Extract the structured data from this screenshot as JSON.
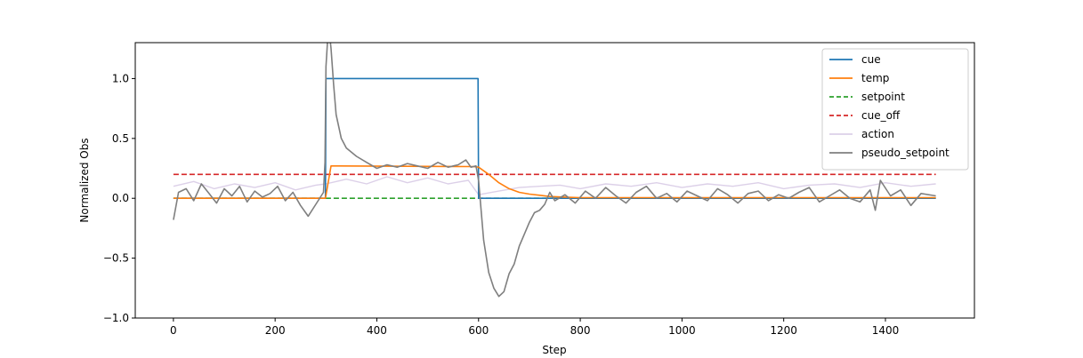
{
  "chart_data": {
    "type": "line",
    "xlabel": "Step",
    "ylabel": "Normalized Obs",
    "xlim": [
      -75,
      1575
    ],
    "ylim": [
      -1.0,
      1.3
    ],
    "xticks": [
      0,
      200,
      400,
      600,
      800,
      1000,
      1200,
      1400
    ],
    "yticks": [
      -1.0,
      -0.5,
      0.0,
      0.5,
      1.0
    ],
    "xtick_labels": [
      "0",
      "200",
      "400",
      "600",
      "800",
      "1000",
      "1200",
      "1400"
    ],
    "ytick_labels": [
      "−1.0",
      "−0.5",
      "0.0",
      "0.5",
      "1.0"
    ],
    "grid": false,
    "legend_position": "top-right",
    "series": [
      {
        "name": "cue",
        "color": "#1f77b4",
        "style": "solid",
        "x": [
          0,
          299,
          300,
          599,
          600,
          1499
        ],
        "y": [
          0,
          0,
          1,
          1,
          0,
          0
        ]
      },
      {
        "name": "temp",
        "color": "#ff7f0e",
        "style": "solid",
        "x": [
          0,
          299,
          310,
          320,
          590,
          600,
          620,
          640,
          660,
          680,
          700,
          720,
          740,
          770,
          800,
          1499
        ],
        "y": [
          0,
          0,
          0.27,
          0.27,
          0.265,
          0.26,
          0.2,
          0.13,
          0.08,
          0.05,
          0.035,
          0.025,
          0.015,
          0.01,
          0.005,
          0.005
        ]
      },
      {
        "name": "setpoint",
        "color": "#2ca02c",
        "style": "dashed",
        "x": [
          0,
          1499
        ],
        "y": [
          0,
          0
        ]
      },
      {
        "name": "cue_off",
        "color": "#d62728",
        "style": "dashed",
        "x": [
          0,
          1499
        ],
        "y": [
          0.2,
          0.2
        ]
      },
      {
        "name": "action",
        "color": "#dcd0e8",
        "style": "solid",
        "x": [
          0,
          40,
          80,
          120,
          160,
          200,
          240,
          280,
          300,
          340,
          380,
          420,
          460,
          500,
          540,
          580,
          600,
          640,
          680,
          720,
          760,
          800,
          850,
          900,
          950,
          1000,
          1050,
          1100,
          1150,
          1200,
          1250,
          1300,
          1350,
          1400,
          1450,
          1499
        ],
        "y": [
          0.1,
          0.14,
          0.08,
          0.12,
          0.09,
          0.13,
          0.07,
          0.11,
          0.12,
          0.16,
          0.12,
          0.18,
          0.13,
          0.17,
          0.12,
          0.15,
          0.03,
          0.06,
          0.09,
          0.1,
          0.11,
          0.08,
          0.12,
          0.1,
          0.13,
          0.09,
          0.12,
          0.1,
          0.13,
          0.08,
          0.11,
          0.12,
          0.09,
          0.13,
          0.1,
          0.12
        ]
      },
      {
        "name": "pseudo_setpoint",
        "color": "#7f7f7f",
        "style": "solid",
        "x": [
          0,
          10,
          25,
          40,
          55,
          70,
          85,
          100,
          115,
          130,
          145,
          160,
          175,
          190,
          205,
          220,
          235,
          250,
          265,
          280,
          295,
          298,
          300,
          305,
          310,
          315,
          320,
          330,
          340,
          360,
          380,
          400,
          420,
          440,
          460,
          480,
          500,
          520,
          540,
          560,
          575,
          585,
          595,
          600,
          610,
          620,
          630,
          640,
          650,
          660,
          670,
          680,
          690,
          700,
          710,
          720,
          730,
          740,
          750,
          770,
          790,
          810,
          830,
          850,
          870,
          890,
          910,
          930,
          950,
          970,
          990,
          1010,
          1030,
          1050,
          1070,
          1090,
          1110,
          1130,
          1150,
          1170,
          1190,
          1210,
          1230,
          1250,
          1270,
          1290,
          1310,
          1330,
          1350,
          1370,
          1380,
          1390,
          1410,
          1430,
          1450,
          1470,
          1499
        ],
        "y": [
          -0.18,
          0.05,
          0.08,
          -0.02,
          0.12,
          0.04,
          -0.04,
          0.08,
          0.02,
          0.1,
          -0.03,
          0.06,
          0.01,
          0.04,
          0.1,
          -0.02,
          0.05,
          -0.06,
          -0.15,
          -0.05,
          0.05,
          0.3,
          1.1,
          1.45,
          1.25,
          0.95,
          0.7,
          0.5,
          0.42,
          0.35,
          0.3,
          0.25,
          0.28,
          0.26,
          0.29,
          0.27,
          0.25,
          0.3,
          0.26,
          0.28,
          0.32,
          0.26,
          0.27,
          0.15,
          -0.35,
          -0.62,
          -0.75,
          -0.82,
          -0.78,
          -0.63,
          -0.55,
          -0.4,
          -0.3,
          -0.2,
          -0.12,
          -0.1,
          -0.05,
          0.05,
          -0.02,
          0.03,
          -0.04,
          0.06,
          0.0,
          0.09,
          0.02,
          -0.04,
          0.05,
          0.1,
          0.0,
          0.04,
          -0.03,
          0.06,
          0.02,
          -0.02,
          0.08,
          0.03,
          -0.04,
          0.04,
          0.06,
          -0.02,
          0.03,
          0.0,
          0.05,
          0.09,
          -0.03,
          0.02,
          0.07,
          0.0,
          -0.03,
          0.07,
          -0.1,
          0.15,
          0.02,
          0.07,
          -0.06,
          0.04,
          0.02
        ]
      }
    ]
  }
}
